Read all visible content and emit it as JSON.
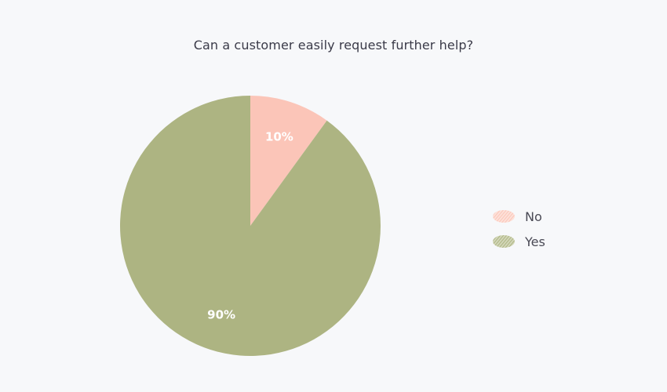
{
  "chart_data": {
    "type": "pie",
    "title": "Can a customer easily request further help?",
    "slices": [
      {
        "label": "No",
        "value": 10,
        "display": "10%",
        "color": "#fbc5b8"
      },
      {
        "label": "Yes",
        "value": 90,
        "display": "90%",
        "color": "#adb482"
      }
    ],
    "start_angle_deg": 0,
    "direction": "clockwise",
    "legend": {
      "position": "right",
      "entries": [
        "No",
        "Yes"
      ]
    }
  }
}
